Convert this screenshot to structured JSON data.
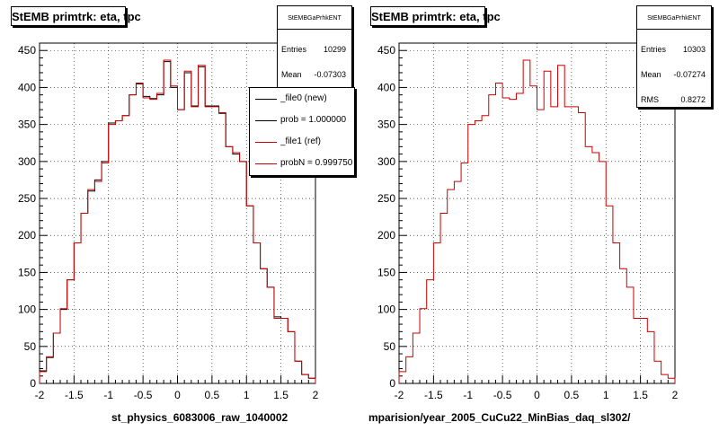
{
  "chart_data": [
    {
      "type": "histogram",
      "title": "StEMB primtrk: eta, tpc",
      "xlabel": "st_physics_6083006_raw_1040002",
      "xlim": [
        -2,
        2
      ],
      "ylim": [
        0,
        460
      ],
      "xticks": [
        -2,
        -1.5,
        -1,
        -0.5,
        0,
        0.5,
        1,
        1.5,
        2
      ],
      "xtick_labels": [
        "-2",
        "-1.5",
        "-1",
        "-0.5",
        "0",
        "0.5",
        "1",
        "1.5",
        "2"
      ],
      "yticks": [
        0,
        50,
        100,
        150,
        200,
        250,
        300,
        350,
        400,
        450
      ],
      "ytick_labels": [
        "0",
        "50",
        "100",
        "150",
        "200",
        "250",
        "300",
        "350",
        "400",
        "450"
      ],
      "bin_edges_start": -2.0,
      "bin_width": 0.1,
      "series": [
        {
          "name": "_file0 (new)",
          "color": "#000000",
          "values": [
            17,
            35,
            68,
            100,
            140,
            190,
            230,
            260,
            275,
            300,
            352,
            355,
            362,
            390,
            405,
            388,
            385,
            390,
            435,
            400,
            370,
            420,
            375,
            428,
            375,
            375,
            365,
            320,
            310,
            300,
            240,
            190,
            155,
            130,
            90,
            88,
            70,
            30,
            12,
            7
          ]
        },
        {
          "name": "_file1 (ref)",
          "color": "#cc0000",
          "values": [
            16,
            36,
            68,
            101,
            140,
            190,
            230,
            262,
            273,
            298,
            350,
            355,
            362,
            390,
            406,
            386,
            384,
            392,
            437,
            402,
            370,
            422,
            374,
            430,
            374,
            374,
            366,
            320,
            312,
            300,
            240,
            190,
            155,
            130,
            88,
            88,
            70,
            30,
            12,
            7
          ]
        }
      ],
      "stats": {
        "title": "StEMBGaPrhkENT",
        "rows": [
          {
            "k": "Entries",
            "v": "10299"
          },
          {
            "k": "Mean",
            "v": "-0.07303"
          }
        ]
      },
      "legend": [
        {
          "label": "_file0 (new)",
          "color": "#000000"
        },
        {
          "label": "prob = 1.000000",
          "color": "#000000"
        },
        {
          "label": "_file1 (ref)",
          "color": "#cc0000"
        },
        {
          "label": "probN = 0.999750",
          "color": "#cc0000"
        }
      ]
    },
    {
      "type": "histogram",
      "title": "StEMB primtrk: eta, tpc",
      "xlabel": "mparision/year_2005_CuCu22_MinBias_daq_sl302/",
      "xlim": [
        -2,
        2
      ],
      "ylim": [
        0,
        460
      ],
      "xticks": [
        -2,
        -1.5,
        -1,
        -0.5,
        0,
        0.5,
        1,
        1.5,
        2
      ],
      "xtick_labels": [
        "-2",
        "-1.5",
        "-1",
        "-0.5",
        "0",
        "0.5",
        "1",
        "1.5",
        "2"
      ],
      "yticks": [
        0,
        50,
        100,
        150,
        200,
        250,
        300,
        350,
        400,
        450
      ],
      "ytick_labels": [
        "0",
        "50",
        "100",
        "150",
        "200",
        "250",
        "300",
        "350",
        "400",
        "450"
      ],
      "bin_edges_start": -2.0,
      "bin_width": 0.1,
      "series": [
        {
          "name": "",
          "color": "#cc0000",
          "values": [
            16,
            36,
            68,
            101,
            140,
            190,
            230,
            262,
            273,
            298,
            350,
            355,
            362,
            390,
            406,
            386,
            384,
            392,
            437,
            402,
            370,
            422,
            374,
            430,
            374,
            374,
            366,
            320,
            312,
            300,
            240,
            190,
            155,
            130,
            88,
            88,
            70,
            30,
            12,
            7
          ]
        }
      ],
      "stats": {
        "title": "StEMBGaPrhkENT",
        "rows": [
          {
            "k": "Entries",
            "v": "10303"
          },
          {
            "k": "Mean",
            "v": "-0.07274"
          },
          {
            "k": "RMS",
            "v": "0.8272"
          }
        ]
      }
    }
  ]
}
